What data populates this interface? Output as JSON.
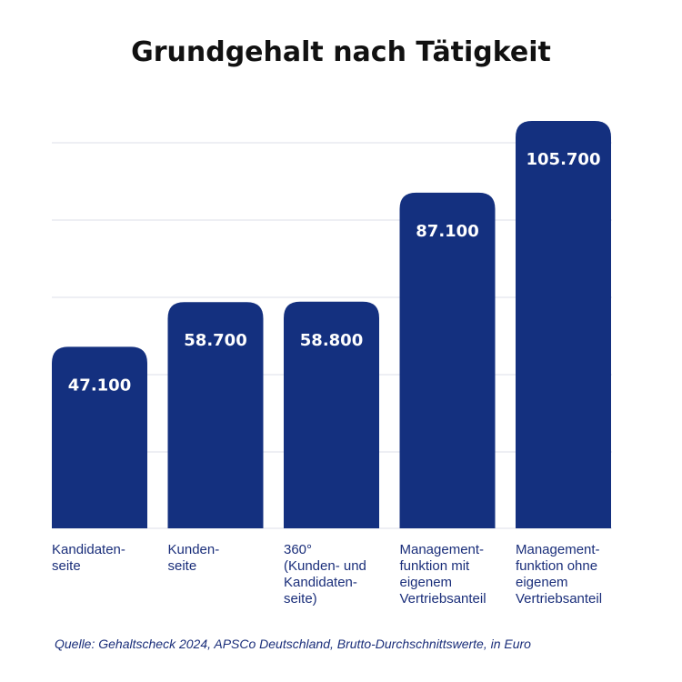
{
  "colors": {
    "bar": "#14307f",
    "grid": "#dcdfea",
    "label": "#1a2e7a",
    "title": "#111111"
  },
  "chart_data": {
    "type": "bar",
    "title": "Grundgehalt nach Tätigkeit",
    "categories": [
      [
        "Kandidaten-",
        "seite"
      ],
      [
        "Kunden-",
        "seite"
      ],
      [
        "360°",
        "(Kunden- und",
        "Kandidaten-",
        "seite)"
      ],
      [
        "Management-",
        "funktion mit",
        "eigenem",
        "Vertriebsanteil"
      ],
      [
        "Management-",
        "funktion ohne",
        "eigenem",
        "Vertriebsanteil"
      ]
    ],
    "values": [
      47100,
      58700,
      58800,
      87100,
      105700
    ],
    "value_labels": [
      "47.100",
      "58.700",
      "58.800",
      "87.100",
      "105.700"
    ],
    "ylim": [
      0,
      105700
    ],
    "grid": true,
    "source": "Quelle: Gehaltscheck 2024, APSCo Deutschland, Brutto-Durchschnittswerte,  in Euro"
  }
}
